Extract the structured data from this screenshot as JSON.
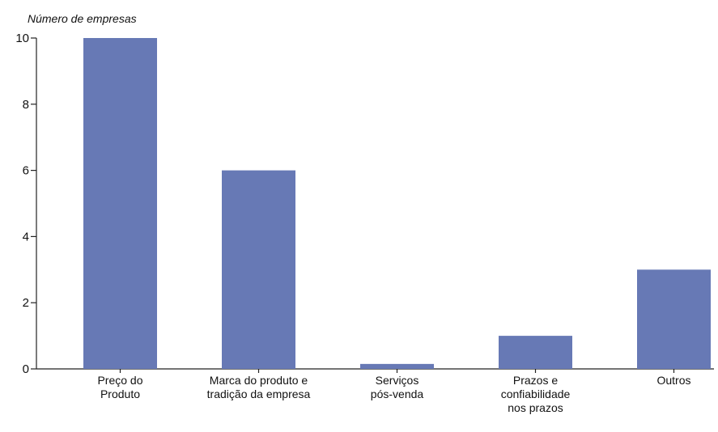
{
  "chart_data": {
    "type": "bar",
    "ylabel": "Número de empresas",
    "xlabel": "",
    "title": "",
    "categories": [
      [
        "Preço do",
        "Produto"
      ],
      [
        "Marca do produto e",
        "tradição da empresa"
      ],
      [
        "Serviços",
        "pós-venda"
      ],
      [
        "Prazos e",
        "confiabilidade",
        "nos prazos"
      ],
      [
        "Outros"
      ]
    ],
    "values": [
      10,
      6,
      0.15,
      1,
      3
    ],
    "ylim": [
      0,
      10
    ],
    "yticks": [
      "0",
      "2",
      "4",
      "6",
      "8",
      "10"
    ],
    "grid": false,
    "legend": "none",
    "colors": {
      "bar": "#6779b5",
      "axis": "#222222",
      "text": "#111111"
    }
  }
}
